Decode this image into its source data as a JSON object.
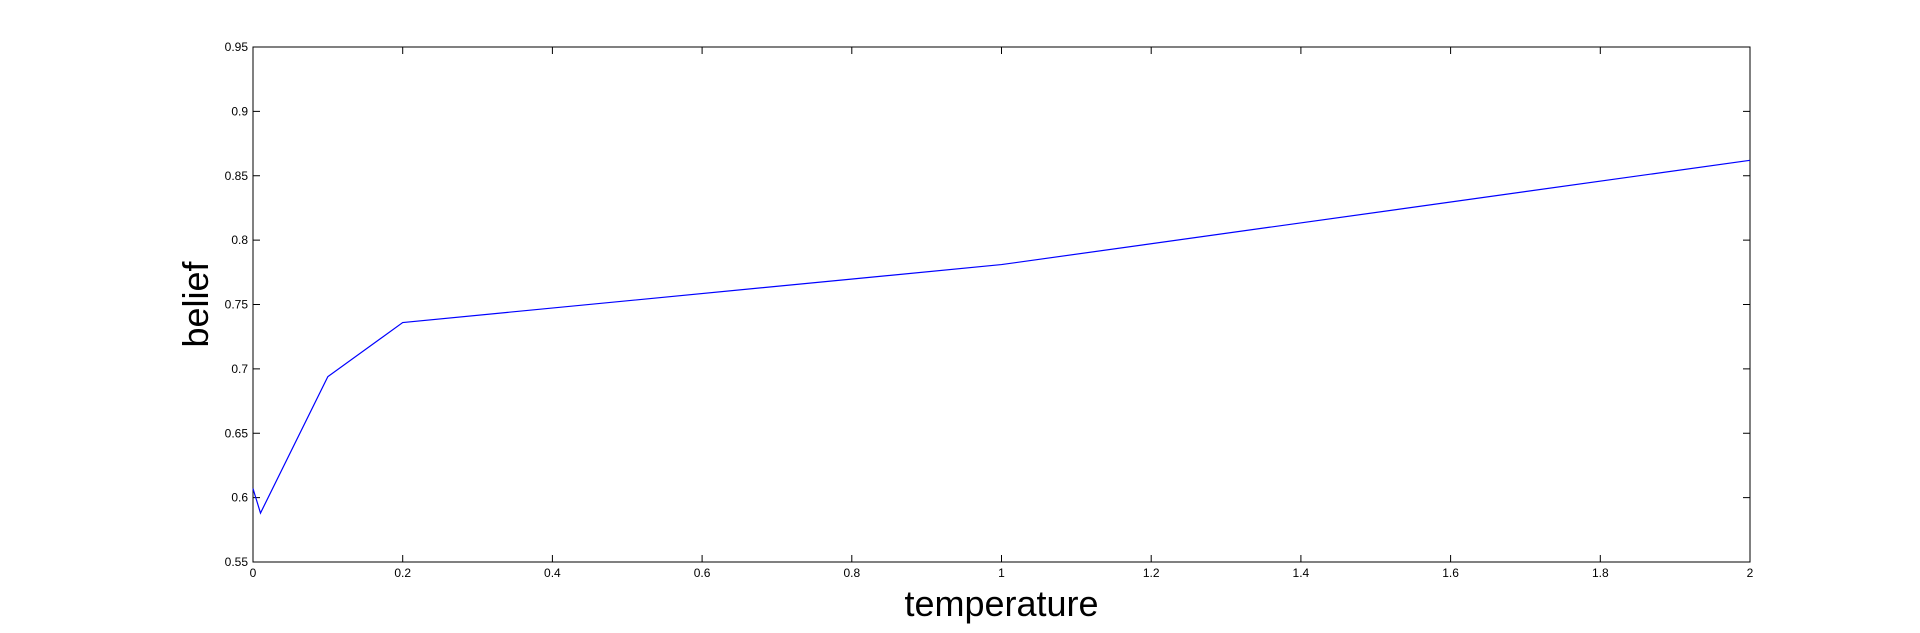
{
  "chart_data": {
    "type": "line",
    "title": "",
    "xlabel": "temperature",
    "ylabel": "belief",
    "xlim": [
      0,
      2
    ],
    "ylim": [
      0.55,
      0.95
    ],
    "xticks": [
      0,
      0.2,
      0.4,
      0.6,
      0.8,
      1,
      1.2,
      1.4,
      1.6,
      1.8,
      2
    ],
    "xtick_labels": [
      "0",
      "0.2",
      "0.4",
      "0.6",
      "0.8",
      "1",
      "1.2",
      "1.4",
      "1.6",
      "1.8",
      "2"
    ],
    "yticks": [
      0.55,
      0.6,
      0.65,
      0.7,
      0.75,
      0.8,
      0.85,
      0.9,
      0.95
    ],
    "ytick_labels": [
      "0.55",
      "0.6",
      "0.65",
      "0.7",
      "0.75",
      "0.8",
      "0.85",
      "0.9",
      "0.95"
    ],
    "grid": false,
    "series": [
      {
        "color": "#0000ff",
        "x": [
          0,
          0.01,
          0.1,
          0.2,
          1,
          2
        ],
        "y": [
          0.607,
          0.588,
          0.694,
          0.736,
          0.781,
          0.862
        ]
      }
    ]
  }
}
